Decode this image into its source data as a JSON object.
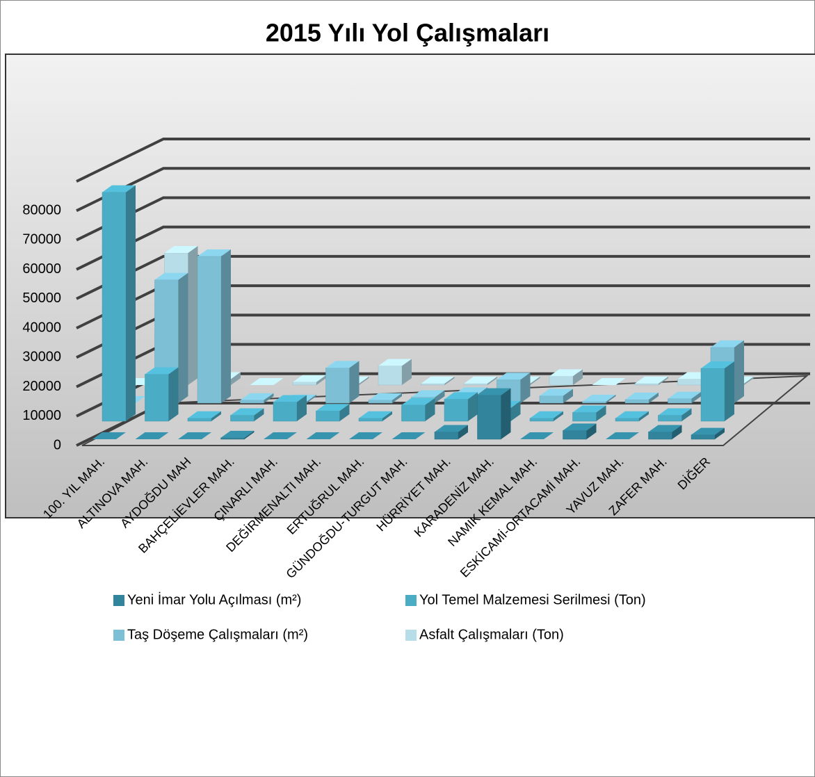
{
  "chart_data": {
    "type": "bar3d",
    "title": "2015 Yılı Yol Çalışmaları",
    "categories": [
      "100. YIL MAH.",
      "ALTINOVA MAH.",
      "AYDOĞDU MAH",
      "BAHÇELİEVLER MAH.",
      "ÇINARLI MAH.",
      "DEĞİRMENALTI MAH.",
      "ERTUĞRUL MAH.",
      "GÜNDOĞDU-TURGUT MAH.",
      "HÜRRİYET MAH.",
      "KARADENİZ MAH.",
      "NAMIK KEMAL MAH.",
      "ESKİCAMİ-ORTACAMİ MAH.",
      "YAVUZ MAH.",
      "ZAFER MAH.",
      "DİĞER"
    ],
    "series": [
      {
        "name": "Yeni İmar Yolu Açılması (m²)",
        "color": "#31849b",
        "values": [
          0,
          0,
          0,
          500,
          0,
          0,
          0,
          0,
          2500,
          15000,
          0,
          3000,
          0,
          2500,
          1500
        ]
      },
      {
        "name": "Yol Temel Malzemesi Serilmesi (Ton)",
        "color": "#4bacc6",
        "values": [
          78000,
          16000,
          1000,
          2000,
          6500,
          3500,
          1000,
          5500,
          7500,
          4500,
          1000,
          3000,
          1000,
          2000,
          18000
        ]
      },
      {
        "name": "Taş Döşeme Çalışmaları (m²)",
        "color": "#7dbfd5",
        "values": [
          0,
          42000,
          50000,
          1000,
          500,
          12000,
          1000,
          2000,
          3000,
          8000,
          2500,
          500,
          1200,
          1500,
          19000
        ]
      },
      {
        "name": "Asfalt Çalışmaları (Ton)",
        "color": "#b7dde8",
        "values": [
          0,
          45000,
          2000,
          0,
          1000,
          500,
          6500,
          500,
          500,
          500,
          3000,
          0,
          500,
          2000,
          500
        ]
      }
    ],
    "ylim": [
      0,
      90000
    ],
    "yticks": [
      0,
      10000,
      20000,
      30000,
      40000,
      50000,
      60000,
      70000,
      80000
    ],
    "grid": true,
    "legend": "bottom"
  }
}
